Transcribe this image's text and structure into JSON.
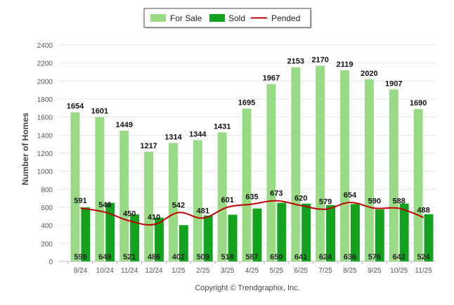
{
  "chart_data": {
    "type": "bar",
    "ylabel": "Number of Homes",
    "ylim": [
      0,
      2400
    ],
    "yticks": [
      0,
      200,
      400,
      600,
      800,
      1000,
      1200,
      1400,
      1600,
      1800,
      2000,
      2200,
      2400
    ],
    "grid": true,
    "legend_position": "top-center",
    "categories": [
      "9/24",
      "10/24",
      "11/24",
      "12/24",
      "1/25",
      "2/25",
      "3/25",
      "4/25",
      "5/25",
      "6/25",
      "7/25",
      "8/25",
      "9/25",
      "10/25",
      "11/25"
    ],
    "series": [
      {
        "name": "For Sale",
        "kind": "bar",
        "color": "#99db85",
        "values": [
          1654,
          1601,
          1449,
          1217,
          1314,
          1344,
          1431,
          1695,
          1967,
          2153,
          2170,
          2119,
          2020,
          1907,
          1690
        ]
      },
      {
        "name": "Sold",
        "kind": "bar",
        "color": "#12a21d",
        "values": [
          599,
          649,
          521,
          486,
          402,
          509,
          518,
          587,
          650,
          641,
          624,
          636,
          576,
          642,
          524
        ]
      },
      {
        "name": "Pended",
        "kind": "line",
        "color": "#c00000",
        "values": [
          591,
          546,
          450,
          410,
          542,
          481,
          601,
          635,
          673,
          620,
          579,
          654,
          590,
          588,
          488
        ]
      }
    ]
  },
  "copyright": "Copyright © Trendgraphix, Inc."
}
